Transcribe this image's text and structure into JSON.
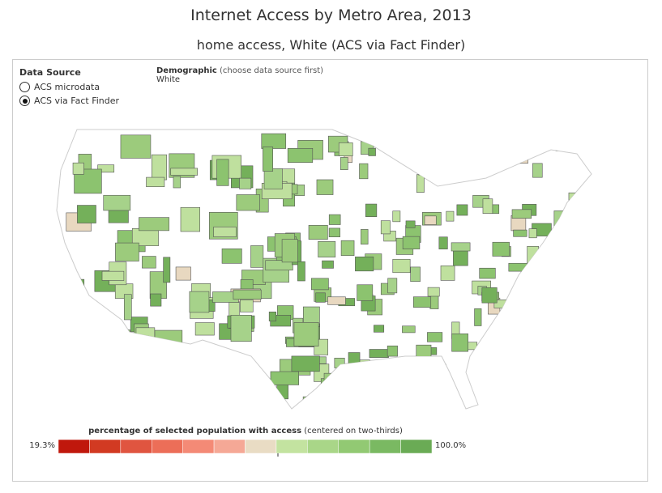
{
  "header": {
    "title": "Internet Access by Metro Area, 2013",
    "subtitle": "home access, White (ACS via Fact Finder)"
  },
  "controls": {
    "data_source": {
      "label": "Data Source",
      "options": [
        "ACS microdata",
        "ACS via Fact Finder"
      ],
      "selected": 1
    },
    "demographic": {
      "label": "Demographic",
      "hint": "(choose data source first)",
      "value": "White"
    }
  },
  "legend": {
    "title": "percentage of selected population with access",
    "note": "(centered on two-thirds)",
    "min_label": "19.3%",
    "max_label": "100.0%"
  }
}
